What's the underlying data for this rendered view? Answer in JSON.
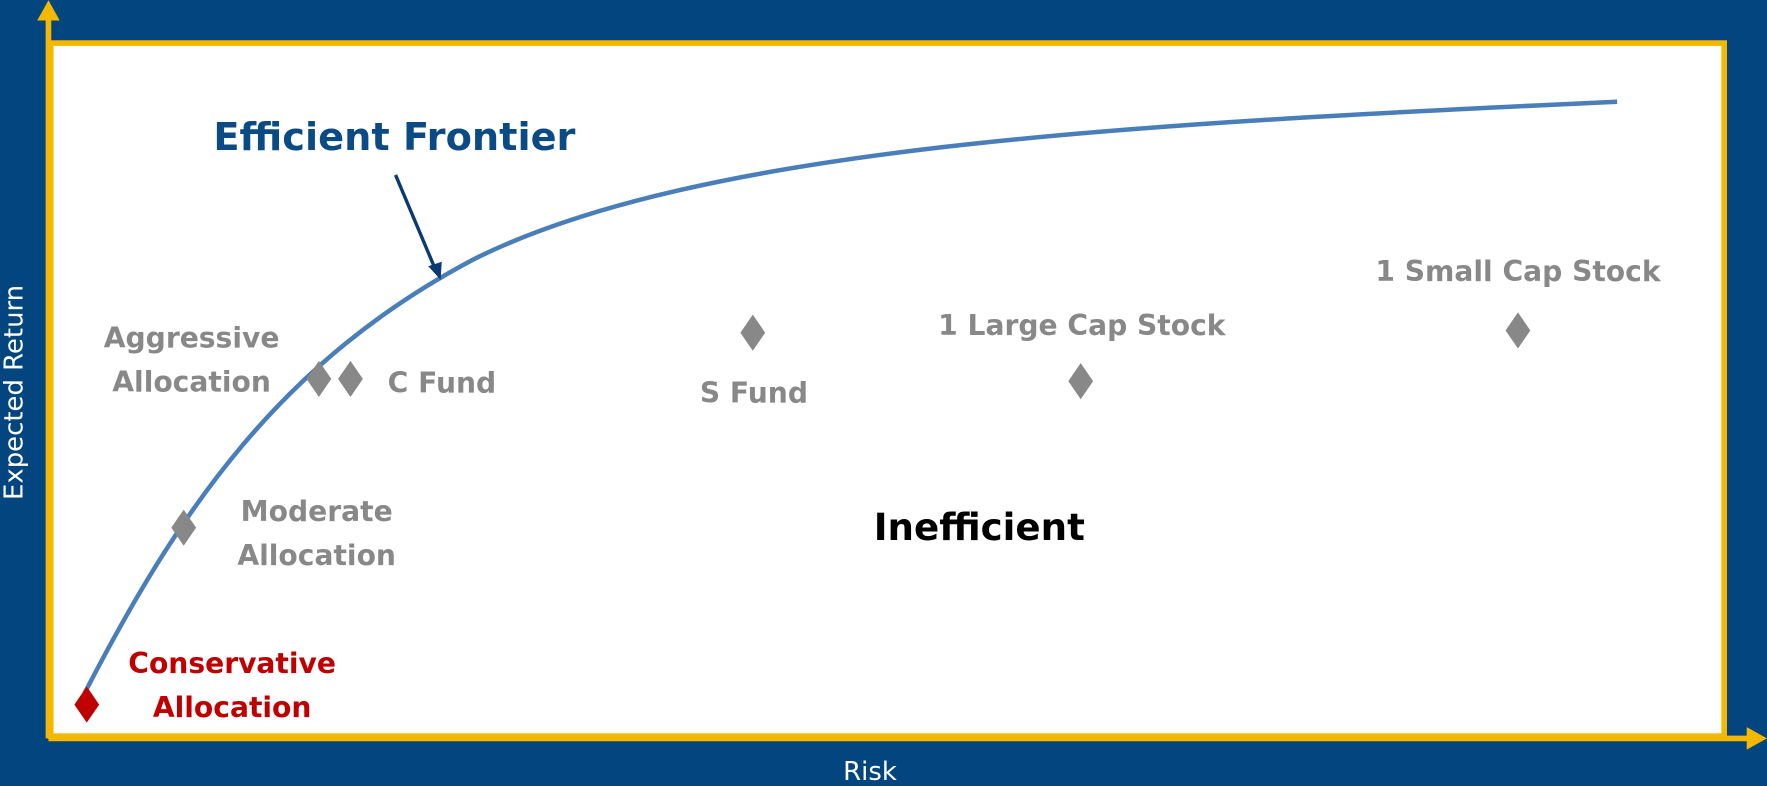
{
  "title": "Efficient Frontier",
  "region_label": "Inefficient",
  "axes": {
    "x_label": "Risk",
    "y_label": "Expected Return"
  },
  "points": [
    {
      "lines": [
        "Conservative",
        "Allocation"
      ]
    },
    {
      "lines": [
        "Moderate",
        "Allocation"
      ]
    },
    {
      "lines": [
        "Aggressive",
        "Allocation"
      ]
    },
    {
      "lines": [
        "C Fund"
      ]
    },
    {
      "lines": [
        "S Fund"
      ]
    },
    {
      "lines": [
        "1 Large Cap Stock"
      ]
    },
    {
      "lines": [
        "1 Small Cap Stock"
      ]
    }
  ]
}
